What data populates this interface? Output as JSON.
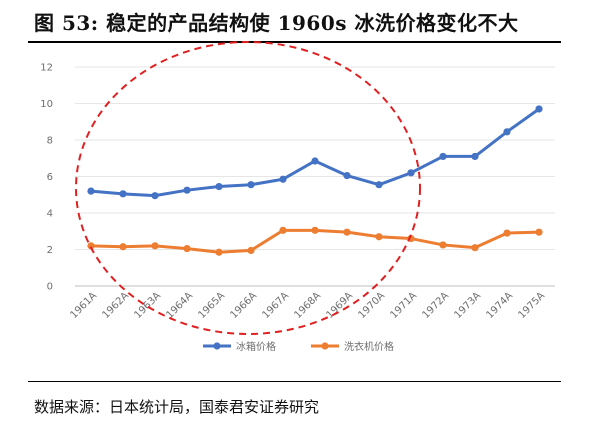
{
  "title": "图 53: 稳定的产品结构使 1960s 冰洗价格变化不大",
  "source": "数据来源：日本统计局，国泰君安证券研究",
  "chart_data": {
    "type": "line",
    "title": "",
    "xlabel": "",
    "ylabel": "",
    "categories": [
      "1961A",
      "1962A",
      "1963A",
      "1964A",
      "1965A",
      "1966A",
      "1967A",
      "1968A",
      "1969A",
      "1970A",
      "1971A",
      "1972A",
      "1973A",
      "1974A",
      "1975A"
    ],
    "ylim": [
      0,
      12
    ],
    "yticks": [
      0,
      2,
      4,
      6,
      8,
      10,
      12
    ],
    "grid": true,
    "legend_position": "bottom",
    "series": [
      {
        "name": "冰箱价格",
        "color": "#4472c4",
        "values": [
          5.2,
          5.05,
          4.95,
          5.25,
          5.45,
          5.55,
          5.85,
          6.85,
          6.05,
          5.55,
          6.2,
          7.1,
          7.1,
          8.45,
          9.7
        ]
      },
      {
        "name": "洗衣机价格",
        "color": "#ed7d31",
        "values": [
          2.2,
          2.15,
          2.2,
          2.05,
          1.85,
          1.95,
          3.05,
          3.05,
          2.95,
          2.7,
          2.6,
          2.25,
          2.1,
          2.9,
          2.95
        ]
      }
    ],
    "annotations": [
      {
        "type": "dashed-ellipse",
        "color": "#e02020"
      }
    ]
  }
}
